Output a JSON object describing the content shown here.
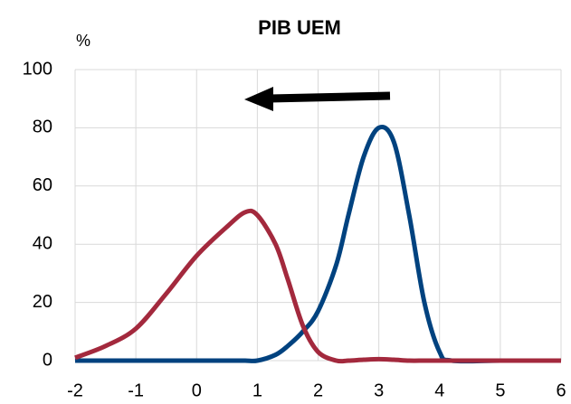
{
  "chart_data": {
    "type": "line",
    "title": "PIB UEM",
    "y_label": "%",
    "x": [
      -2,
      -1.5,
      -1,
      -0.5,
      0,
      0.5,
      0.8,
      1,
      1.3,
      1.5,
      1.75,
      2,
      2.3,
      2.5,
      2.75,
      3,
      3.25,
      3.5,
      3.75,
      4,
      4.2,
      5,
      6
    ],
    "series": [
      {
        "color": "#00427f",
        "values": [
          0,
          0,
          0,
          0,
          0,
          0,
          0,
          0,
          2,
          5,
          10,
          17,
          33,
          50,
          70,
          80,
          75,
          50,
          20,
          3,
          0,
          0,
          0
        ]
      },
      {
        "color": "#a3293d",
        "values": [
          1,
          5,
          11,
          23,
          36,
          46,
          51,
          50,
          40,
          28,
          12,
          3,
          0,
          0,
          0.3,
          0.5,
          0.3,
          0,
          0,
          0,
          0,
          0,
          0
        ]
      }
    ],
    "xlim": [
      -2,
      6
    ],
    "xticks": [
      -2,
      -1,
      0,
      1,
      2,
      3,
      4,
      5,
      6
    ],
    "ylim": [
      0,
      100
    ],
    "yticks": [
      0,
      20,
      40,
      60,
      80,
      100
    ],
    "grid": true
  }
}
